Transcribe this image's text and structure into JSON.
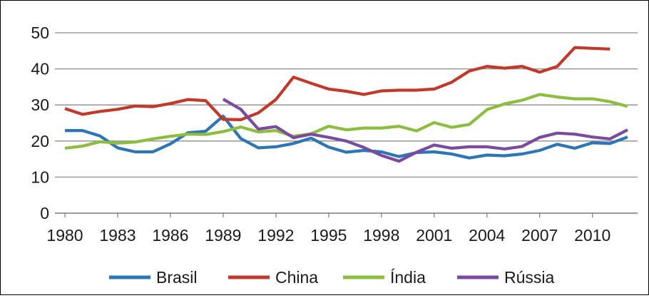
{
  "chart_data": {
    "type": "line",
    "title": "",
    "xlabel": "",
    "ylabel": "",
    "x": [
      1980,
      1981,
      1982,
      1983,
      1984,
      1985,
      1986,
      1987,
      1988,
      1989,
      1990,
      1991,
      1992,
      1993,
      1994,
      1995,
      1996,
      1997,
      1998,
      1999,
      2000,
      2001,
      2002,
      2003,
      2004,
      2005,
      2006,
      2007,
      2008,
      2009,
      2010,
      2011,
      2012
    ],
    "xticks": [
      1980,
      1983,
      1986,
      1989,
      1992,
      1995,
      1998,
      2001,
      2004,
      2007,
      2010
    ],
    "xtick_labels": [
      "1980",
      "1983",
      "1986",
      "1989",
      "1992",
      "1995",
      "1998",
      "2001",
      "2004",
      "2007",
      "2010"
    ],
    "ylim": [
      0,
      50
    ],
    "yticks": [
      0,
      10,
      20,
      30,
      40,
      50
    ],
    "ytick_labels": [
      "0",
      "10",
      "20",
      "30",
      "40",
      "50"
    ],
    "grid": "horizontal",
    "legend_position": "bottom",
    "series": [
      {
        "name": "Brasil",
        "color": "#2e75b6",
        "values": [
          22.9,
          22.9,
          21.4,
          18.1,
          17.0,
          17.0,
          19.2,
          22.3,
          22.7,
          26.9,
          20.7,
          18.1,
          18.4,
          19.3,
          20.8,
          18.3,
          16.9,
          17.4,
          17.0,
          15.7,
          16.8,
          17.0,
          16.4,
          15.3,
          16.1,
          15.9,
          16.4,
          17.4,
          19.1,
          18.0,
          19.5,
          19.3,
          21.1
        ]
      },
      {
        "name": "China",
        "color": "#c0392b",
        "values": [
          29.0,
          27.4,
          28.2,
          28.8,
          29.7,
          29.5,
          30.4,
          31.5,
          31.2,
          26.0,
          25.9,
          27.8,
          31.5,
          37.7,
          36.0,
          34.4,
          33.8,
          32.9,
          33.9,
          34.1,
          34.1,
          34.4,
          36.3,
          39.4,
          40.7,
          40.2,
          40.7,
          39.1,
          40.7,
          45.9,
          45.7,
          45.5,
          null
        ]
      },
      {
        "name": "Índia",
        "color": "#8cbd3f",
        "values": [
          18.0,
          18.6,
          19.8,
          19.4,
          19.7,
          20.6,
          21.3,
          21.9,
          21.8,
          22.6,
          23.9,
          22.5,
          22.9,
          21.3,
          22.0,
          24.1,
          23.1,
          23.6,
          23.6,
          24.1,
          22.8,
          25.1,
          23.8,
          24.6,
          28.7,
          30.3,
          31.3,
          32.9,
          32.2,
          31.7,
          31.7,
          30.9,
          29.6
        ]
      },
      {
        "name": "Rússia",
        "color": "#7a4a9e",
        "values": [
          null,
          null,
          null,
          null,
          null,
          null,
          null,
          null,
          null,
          31.6,
          28.8,
          23.3,
          24.0,
          20.9,
          21.9,
          21.0,
          20.0,
          18.2,
          16.0,
          14.4,
          16.9,
          18.9,
          18.0,
          18.4,
          18.4,
          17.8,
          18.5,
          21.0,
          22.2,
          21.9,
          21.1,
          20.6,
          23.1
        ]
      }
    ]
  }
}
